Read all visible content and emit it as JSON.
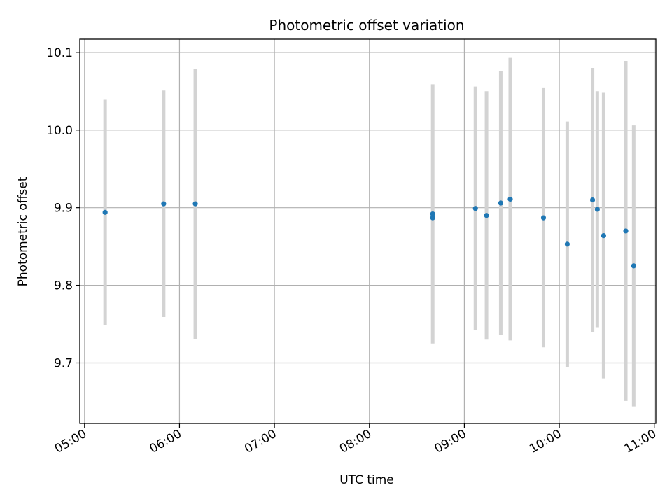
{
  "chart_data": {
    "type": "scatter",
    "title": "Photometric offset variation",
    "xlabel": "UTC time",
    "ylabel": "Photometric offset",
    "x_ticks": [
      "05:00",
      "06:00",
      "07:00",
      "08:00",
      "09:00",
      "10:00",
      "11:00"
    ],
    "y_ticks": [
      "9.7",
      "9.8",
      "9.9",
      "10.0",
      "10.1"
    ],
    "xlim": [
      "04:57",
      "11:01"
    ],
    "ylim": [
      9.622,
      10.117
    ],
    "grid": true,
    "colors": {
      "points": "#1f77b4",
      "error_bars": "#d3d3d3",
      "grid": "#b0b0b0"
    },
    "series": [
      {
        "points": [
          {
            "time": "05:13",
            "y": 9.894,
            "err": 0.145
          },
          {
            "time": "05:50",
            "y": 9.905,
            "err": 0.146
          },
          {
            "time": "06:10",
            "y": 9.905,
            "err": 0.174
          },
          {
            "time": "08:40",
            "y": 9.892,
            "err": 0.167
          },
          {
            "time": "08:40",
            "y": 9.887,
            "err": 0.0
          },
          {
            "time": "09:07",
            "y": 9.899,
            "err": 0.157
          },
          {
            "time": "09:14",
            "y": 9.89,
            "err": 0.16
          },
          {
            "time": "09:23",
            "y": 9.906,
            "err": 0.17
          },
          {
            "time": "09:29",
            "y": 9.911,
            "err": 0.182
          },
          {
            "time": "09:50",
            "y": 9.887,
            "err": 0.167
          },
          {
            "time": "10:05",
            "y": 9.853,
            "err": 0.158
          },
          {
            "time": "10:21",
            "y": 9.91,
            "err": 0.17
          },
          {
            "time": "10:24",
            "y": 9.898,
            "err": 0.152
          },
          {
            "time": "10:28",
            "y": 9.864,
            "err": 0.184
          },
          {
            "time": "10:42",
            "y": 9.87,
            "err": 0.219
          },
          {
            "time": "10:47",
            "y": 9.825,
            "err": 0.181
          }
        ]
      }
    ]
  }
}
